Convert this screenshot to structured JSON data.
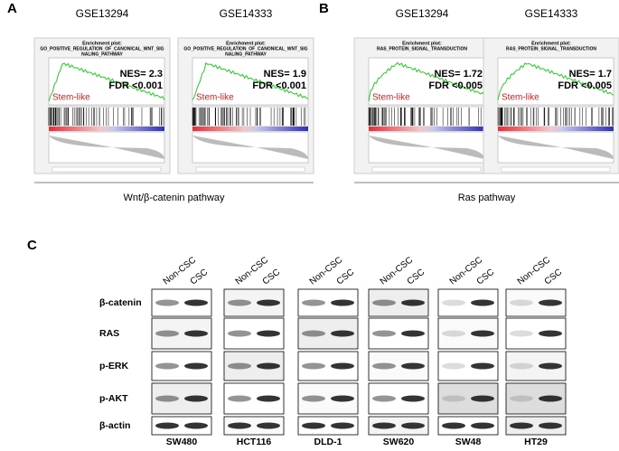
{
  "panels": [
    {
      "label": "A",
      "pathway": "Wnt/β-catenin pathway",
      "plots": [
        {
          "dataset": "GSE13294",
          "heading": "Enrichment plot:",
          "name_lines": [
            "GO_POSITIVE_REGULATION_OF_CANONICAL_WNT_SIG",
            "NALING_PATHWAY"
          ],
          "nes": "NES= 2.3",
          "fdr": "FDR <0.001",
          "phenotype": "Stem-like"
        },
        {
          "dataset": "GSE14333",
          "heading": "Enrichment plot:",
          "name_lines": [
            "GO_POSITIVE_REGULATION_OF_CANONICAL_WNT_SIG",
            "NALING_PATHWAY"
          ],
          "nes": "NES= 1.9",
          "fdr": "FDR <0.001",
          "phenotype": "Stem-like"
        }
      ]
    },
    {
      "label": "B",
      "pathway": "Ras pathway",
      "plots": [
        {
          "dataset": "GSE13294",
          "heading": "Enrichment plot:",
          "name_lines": [
            "RAS_PROTEIN_SIGNAL_TRANSDUCTION"
          ],
          "nes": "NES= 1.72",
          "fdr": "FDR <0.005",
          "phenotype": "Stem-like"
        },
        {
          "dataset": "GSE14333",
          "heading": "Enrichment plot:",
          "name_lines": [
            "RAS_PROTEIN_SIGNAL_TRANSDUCTION"
          ],
          "nes": "NES= 1.7",
          "fdr": "FDR <0.005",
          "phenotype": "Stem-like"
        }
      ]
    }
  ],
  "blots": {
    "label": "C",
    "groups": [
      "Non-CSC",
      "CSC"
    ],
    "proteins": [
      "β-catenin",
      "RAS",
      "p-ERK",
      "p-AKT",
      "β-actin"
    ],
    "cell_lines": [
      "SW480",
      "HCT116",
      "DLD-1",
      "SW620",
      "SW48",
      "HT29"
    ]
  }
}
